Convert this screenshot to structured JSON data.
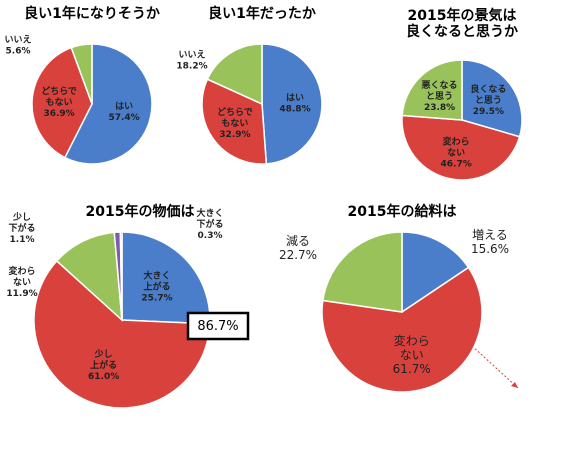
{
  "chart_data": [
    {
      "type": "pie",
      "title": "良い1年になりそうか",
      "categories": [
        "はい",
        "どちらで\nもない",
        "いいえ"
      ],
      "values": [
        57.4,
        36.9,
        5.6
      ],
      "value_labels": [
        "57.4%",
        "36.9%",
        "5.6%"
      ],
      "colors": [
        "#4a7ecb",
        "#d9413c",
        "#9ac25a"
      ]
    },
    {
      "type": "pie",
      "title": "良い1年だったか",
      "categories": [
        "はい",
        "どちらで\nもない",
        "いいえ"
      ],
      "values": [
        48.8,
        32.9,
        18.2
      ],
      "value_labels": [
        "48.8%",
        "32.9%",
        "18.2%"
      ],
      "colors": [
        "#4a7ecb",
        "#d9413c",
        "#9ac25a"
      ]
    },
    {
      "type": "pie",
      "title": "2015年の景気は\n良くなると思うか",
      "categories": [
        "良くなる\nと思う",
        "変わら\nない",
        "悪くなる\nと思う"
      ],
      "values": [
        29.5,
        46.7,
        23.8
      ],
      "value_labels": [
        "29.5%",
        "46.7%",
        "23.8%"
      ],
      "colors": [
        "#4a7ecb",
        "#d9413c",
        "#9ac25a"
      ]
    },
    {
      "type": "pie",
      "title": "2015年の物価は",
      "categories": [
        "大きく\n上がる",
        "少し\n上がる",
        "変わら\nない",
        "少し\n下がる",
        "大きく\n下がる"
      ],
      "values": [
        25.7,
        61.0,
        11.9,
        1.1,
        0.3
      ],
      "value_labels": [
        "25.7%",
        "61.0%",
        "11.9%",
        "1.1%",
        "0.3%"
      ],
      "colors": [
        "#4a7ecb",
        "#d9413c",
        "#9ac25a",
        "#7e5ca8",
        "#2f4f8f"
      ],
      "annotation": "86.7%"
    },
    {
      "type": "pie",
      "title": "2015年の給料は",
      "categories": [
        "増える",
        "変わら\nない",
        "減る"
      ],
      "values": [
        15.6,
        61.7,
        22.7
      ],
      "value_labels": [
        "15.6%",
        "61.7%",
        "22.7%"
      ],
      "colors": [
        "#4a7ecb",
        "#d9413c",
        "#9ac25a"
      ]
    }
  ]
}
